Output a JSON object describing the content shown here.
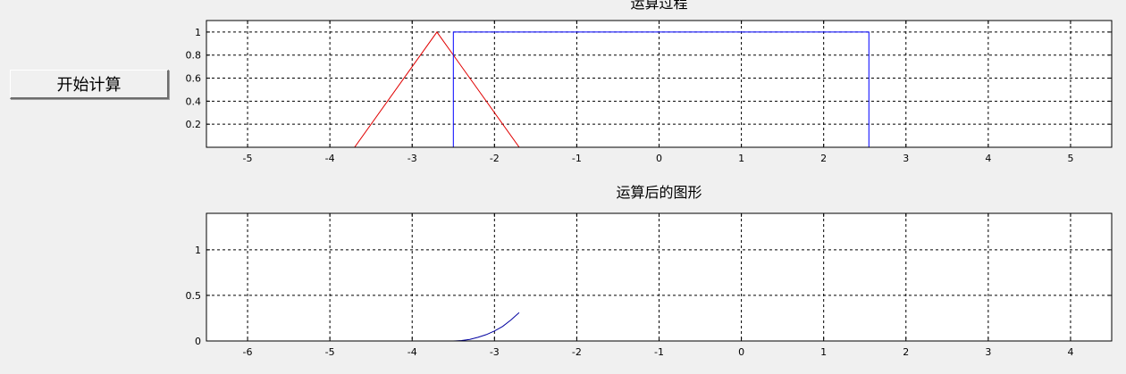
{
  "controls": {
    "start_button_label": "开始计算"
  },
  "colors": {
    "background": "#f0f0f0",
    "plot_background": "#ffffff",
    "grid": "#000000",
    "triangle_series": "#e00000",
    "rect_series": "#0000ff",
    "result_series": "#0000a0"
  },
  "chart_data": [
    {
      "type": "line",
      "title": "运算过程",
      "xlabel": "",
      "ylabel": "",
      "xlim": [
        -5.5,
        5.5
      ],
      "ylim": [
        0,
        1.1
      ],
      "xticks": [
        -5,
        -4,
        -3,
        -2,
        -1,
        0,
        1,
        2,
        3,
        4,
        5
      ],
      "xtick_labels": [
        "-5",
        "-4",
        "-3",
        "-2",
        "-1",
        "0",
        "1",
        "2",
        "3",
        "4",
        "5"
      ],
      "yticks": [
        0.2,
        0.4,
        0.6,
        0.8,
        1
      ],
      "ytick_labels": [
        "0.2",
        "0.4",
        "0.6",
        "0.8",
        "1"
      ],
      "grid": true,
      "series": [
        {
          "color": "#e00000",
          "x": [
            -3.8,
            -2.7,
            -1.6
          ],
          "y": [
            -0.1,
            1.0,
            -0.1
          ]
        },
        {
          "color": "#0000ff",
          "x": [
            -2.5,
            -2.5,
            2.55,
            2.55
          ],
          "y": [
            0,
            1,
            1,
            0
          ]
        }
      ]
    },
    {
      "type": "line",
      "title": "运算后的图形",
      "xlabel": "",
      "ylabel": "",
      "xlim": [
        -6.5,
        4.5
      ],
      "ylim": [
        0,
        1.4
      ],
      "xticks": [
        -6,
        -5,
        -4,
        -3,
        -2,
        -1,
        0,
        1,
        2,
        3,
        4
      ],
      "xtick_labels": [
        "-6",
        "-5",
        "-4",
        "-3",
        "-2",
        "-1",
        "0",
        "1",
        "2",
        "3",
        "4"
      ],
      "yticks": [
        0,
        0.5,
        1
      ],
      "ytick_labels": [
        "0",
        "0.5",
        "1"
      ],
      "grid": true,
      "series": [
        {
          "color": "#0000a0",
          "x": [
            -6.5,
            -3.5,
            -3.4,
            -3.3,
            -3.2,
            -3.1,
            -3.0,
            -2.9,
            -2.8,
            -2.7
          ],
          "y": [
            0,
            0,
            0.005,
            0.018,
            0.04,
            0.07,
            0.11,
            0.16,
            0.23,
            0.31
          ]
        }
      ]
    }
  ]
}
